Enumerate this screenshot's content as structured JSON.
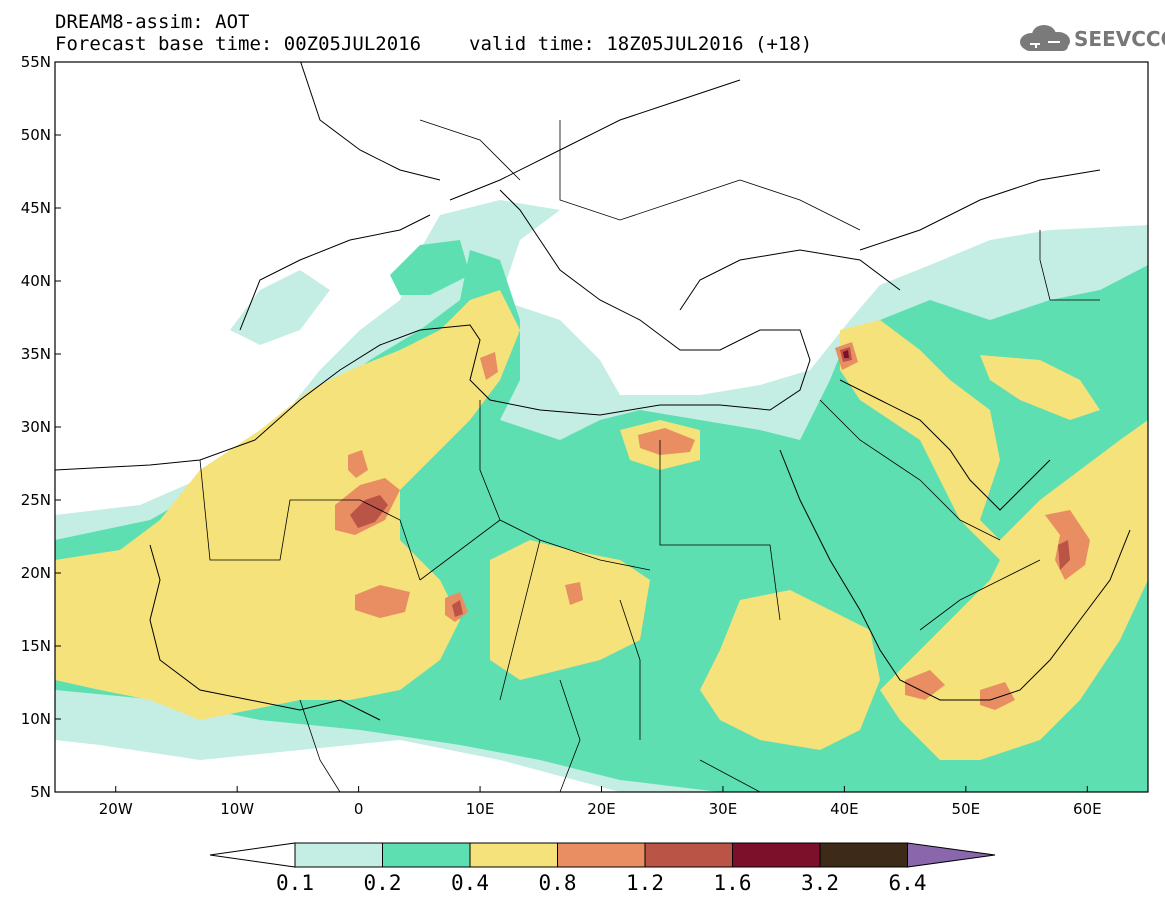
{
  "title": {
    "line1": "DREAM8-assim: AOT",
    "base_time": "Forecast base time: 00Z05JUL2016",
    "valid_time": "valid time: 18Z05JUL2016 (+18)"
  },
  "logo": {
    "text": "SEEVCCC",
    "icon": "cloud-icon"
  },
  "map": {
    "lon_range": [
      -25,
      65
    ],
    "lat_range": [
      5,
      55
    ],
    "x_ticks": [
      "20W",
      "10W",
      "0",
      "10E",
      "20E",
      "30E",
      "40E",
      "50E",
      "60E"
    ],
    "y_ticks": [
      "55N",
      "50N",
      "45N",
      "40N",
      "35N",
      "30N",
      "25N",
      "20N",
      "15N",
      "10N",
      "5N"
    ]
  },
  "colorbar": {
    "labels": [
      "0.1",
      "0.2",
      "0.4",
      "0.8",
      "1.2",
      "1.6",
      "3.2",
      "6.4"
    ],
    "colors": [
      "#c4eee4",
      "#5ddfb2",
      "#f6e27a",
      "#e88e62",
      "#ba5447",
      "#7c0f2a",
      "#3e2a18",
      "#8a66ad"
    ],
    "low_end_color": "#ffffff"
  },
  "colors": {
    "land_outline": "#000000",
    "background": "#ffffff"
  }
}
